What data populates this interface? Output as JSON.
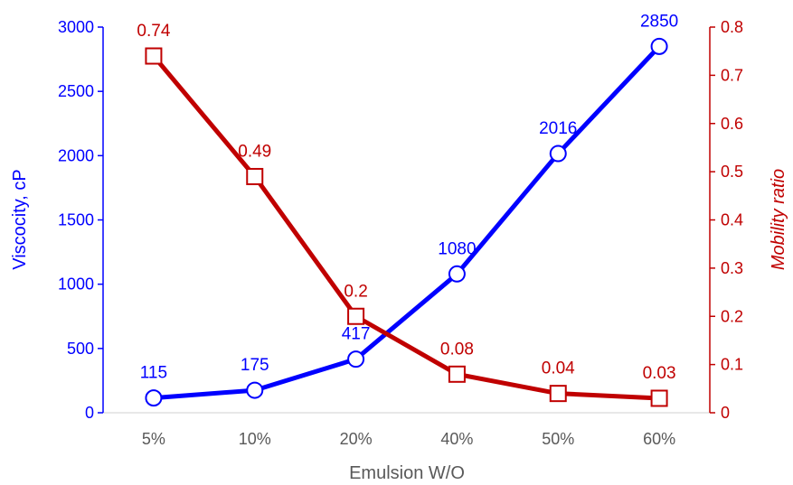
{
  "chart_data": {
    "type": "line",
    "title": "",
    "categories": [
      "5%",
      "10%",
      "20%",
      "40%",
      "50%",
      "60%"
    ],
    "xlabel": "Emulsion W/O",
    "grid": false,
    "legend": "none",
    "y_left": {
      "label": "Viscocity, cP",
      "lim": [
        0,
        3000
      ],
      "ticks": [
        0,
        500,
        1000,
        1500,
        2000,
        2500,
        3000
      ],
      "color": "#0000ff"
    },
    "y_right": {
      "label": "Mobility ratio",
      "lim": [
        0,
        0.8
      ],
      "ticks": [
        0,
        0.1,
        0.2,
        0.3,
        0.4,
        0.5,
        0.6,
        0.7,
        0.8
      ],
      "color": "#c00000"
    },
    "series": [
      {
        "axis": "left",
        "values": [
          115,
          175,
          417,
          1080,
          2016,
          2850
        ],
        "labels": [
          "115",
          "175",
          "417",
          "1080",
          "2016",
          "2850"
        ],
        "color": "#0000ff",
        "marker": "circle"
      },
      {
        "axis": "right",
        "values": [
          0.74,
          0.49,
          0.2,
          0.08,
          0.04,
          0.03
        ],
        "labels": [
          "0.74",
          "0.49",
          "0.2",
          "0.08",
          "0.04",
          "0.03"
        ],
        "color": "#c00000",
        "marker": "square"
      }
    ]
  }
}
